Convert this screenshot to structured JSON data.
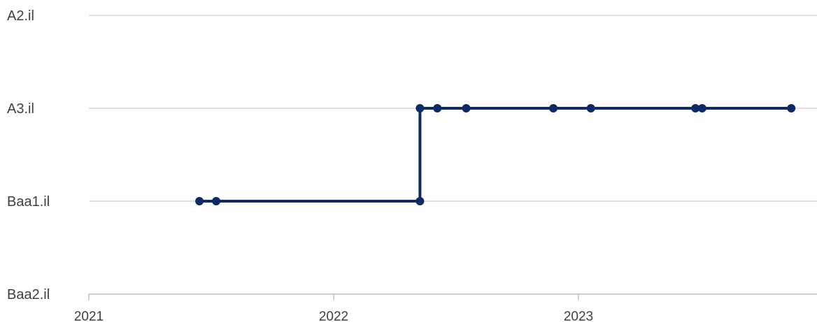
{
  "chart_data": {
    "type": "line",
    "step": true,
    "title": "",
    "xlabel": "",
    "ylabel": "",
    "y_categories": [
      "Baa2.il",
      "Baa1.il",
      "A3.il",
      "A2.il"
    ],
    "x_ticks": [
      "2021",
      "2022",
      "2023"
    ],
    "xlim": [
      "2021-01-01",
      "2023-12-31"
    ],
    "grid": true,
    "line_color": "#0b2a66",
    "grid_color": "#d9d9d9",
    "axis_color": "#bfbfbf",
    "series": [
      {
        "points": [
          {
            "date": "2021-06-15",
            "rating": "Baa1.il"
          },
          {
            "date": "2021-07-10",
            "rating": "Baa1.il"
          },
          {
            "date": "2022-05-10",
            "rating": "Baa1.il"
          },
          {
            "date": "2022-05-10",
            "rating": "A3.il"
          },
          {
            "date": "2022-06-05",
            "rating": "A3.il"
          },
          {
            "date": "2022-07-18",
            "rating": "A3.il"
          },
          {
            "date": "2022-11-25",
            "rating": "A3.il"
          },
          {
            "date": "2023-01-20",
            "rating": "A3.il"
          },
          {
            "date": "2023-06-25",
            "rating": "A3.il"
          },
          {
            "date": "2023-07-05",
            "rating": "A3.il"
          },
          {
            "date": "2023-11-15",
            "rating": "A3.il"
          }
        ]
      }
    ]
  }
}
